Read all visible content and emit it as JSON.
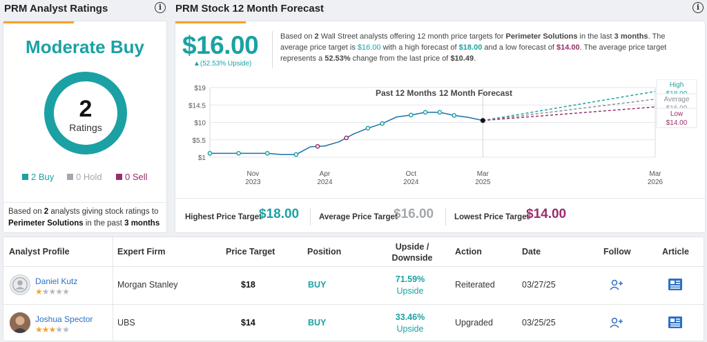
{
  "analyst_ratings": {
    "title": "PRM Analyst Ratings",
    "consensus": "Moderate Buy",
    "total": "2",
    "total_label": "Ratings",
    "buy": "2 Buy",
    "hold": "0 Hold",
    "sell": "0 Sell",
    "note_prefix": "Based on ",
    "note_count": "2",
    "note_mid": " analysts giving stock ratings to ",
    "note_company": "Perimeter Solutions",
    "note_mid2": " in the past ",
    "note_period": "3 months",
    "colors": {
      "buy": "#1ba1a4",
      "hold": "#a3a8ae",
      "sell": "#9b2c6b"
    }
  },
  "forecast": {
    "title": "PRM Stock 12 Month Forecast",
    "avg_price": "$16.00",
    "upside": "(52.53% Upside)",
    "summary": {
      "s1": "Based on ",
      "count": "2",
      "s2": " Wall Street analysts offering 12 month price targets for ",
      "company": "Perimeter Solutions",
      "s3": " in the last ",
      "period": "3 months",
      "s4": ". The average price target is ",
      "avg": "$16.00",
      "s5": " with a high forecast of ",
      "high": "$18.00",
      "s6": " and a low forecast of ",
      "low": "$14.00",
      "s7": ". The average price target represents a ",
      "change": "52.53%",
      "s8": " change from the last price of ",
      "last": "$10.49",
      "s9": "."
    },
    "targets": {
      "high_label": "Highest Price Target",
      "high_value": "$18.00",
      "avg_label": "Average Price Target",
      "avg_value": "$16.00",
      "low_label": "Lowest Price Target",
      "low_value": "$14.00"
    }
  },
  "chart_data": {
    "type": "line",
    "title_past": "Past 12 Months",
    "title_forecast": "12 Month Forecast",
    "y_ticks": [
      "$19",
      "$14.5",
      "$10",
      "$5.5",
      "$1"
    ],
    "ylim": [
      1,
      19
    ],
    "x_ticks": [
      {
        "month": "Nov",
        "year": "2023",
        "m": 3
      },
      {
        "month": "Apr",
        "year": "2024",
        "m": 8
      },
      {
        "month": "Oct",
        "year": "2024",
        "m": 14
      },
      {
        "month": "Mar",
        "year": "2025",
        "m": 19
      },
      {
        "month": "Mar",
        "year": "2026",
        "m": 31
      }
    ],
    "price_series": {
      "m": [
        0,
        1,
        2,
        3,
        4,
        5,
        6,
        7,
        8,
        9,
        10,
        11,
        12,
        13,
        14,
        15,
        16,
        17,
        18,
        19
      ],
      "y": [
        2.0,
        2.0,
        2.0,
        2.0,
        2.0,
        1.7,
        1.7,
        3.7,
        3.9,
        5.0,
        7.0,
        8.5,
        9.7,
        11.4,
        11.9,
        12.6,
        12.6,
        11.8,
        11.3,
        10.49
      ]
    },
    "marker_points": [
      {
        "m": 0,
        "y": 2.0,
        "kind": "hold"
      },
      {
        "m": 1,
        "y": 2.0,
        "kind": "hold"
      },
      {
        "m": 2,
        "y": 2.0,
        "kind": "hold"
      },
      {
        "m": 3,
        "y": 1.7,
        "kind": "hold"
      },
      {
        "m": 4,
        "y": 3.7,
        "kind": "sell"
      },
      {
        "m": 5,
        "y": 5.0,
        "kind": "sell"
      },
      {
        "m": 6,
        "y": 7.0,
        "kind": "hold"
      },
      {
        "m": 7,
        "y": 9.7,
        "kind": "hold"
      },
      {
        "m": 8,
        "y": 11.0,
        "kind": "hold"
      },
      {
        "m": 9,
        "y": 12.6,
        "kind": "hold"
      },
      {
        "m": 10,
        "y": 12.6,
        "kind": "hold"
      },
      {
        "m": 11,
        "y": 11.8,
        "kind": "hold"
      },
      {
        "m": 12,
        "y": 10.49,
        "kind": "last"
      }
    ],
    "forecast": [
      {
        "name": "High",
        "value": 18,
        "label": "$18.00",
        "color": "#1ba1a4"
      },
      {
        "name": "Average",
        "value": 16,
        "label": "$16.00",
        "color": "#8a8f96"
      },
      {
        "name": "Low",
        "value": 14,
        "label": "$14.00",
        "color": "#9b2c6b"
      }
    ],
    "colors": {
      "line": "#1b6fa8",
      "hold_marker": "#1ba1a4",
      "sell_marker": "#9b2c6b"
    }
  },
  "table": {
    "headers": {
      "profile": "Analyst Profile",
      "firm": "Expert Firm",
      "target": "Price Target",
      "position": "Position",
      "updown_1": "Upside /",
      "updown_2": "Downside",
      "action": "Action",
      "date": "Date",
      "follow": "Follow",
      "article": "Article"
    },
    "rows": [
      {
        "name": "Daniel Kutz",
        "stars": 1,
        "firm": "Morgan Stanley",
        "target": "$18",
        "position": "BUY",
        "updown_pct": "71.59%",
        "updown_dir": "Upside",
        "action": "Reiterated",
        "date": "03/27/25"
      },
      {
        "name": "Joshua Spector",
        "stars": 3,
        "firm": "UBS",
        "target": "$14",
        "position": "BUY",
        "updown_pct": "33.46%",
        "updown_dir": "Upside",
        "action": "Upgraded",
        "date": "03/25/25"
      }
    ]
  }
}
